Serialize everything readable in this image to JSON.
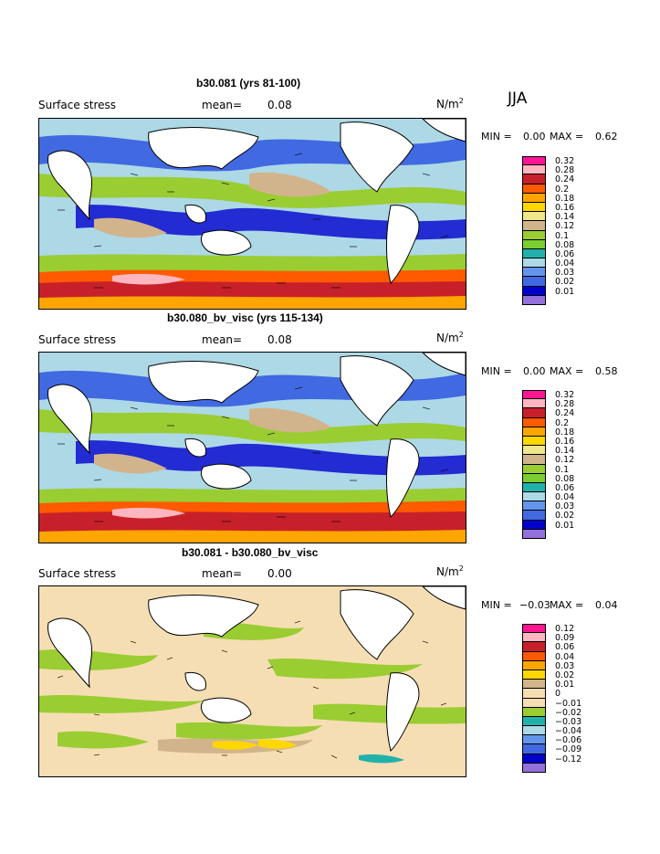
{
  "season": "JJA",
  "panels": [
    {
      "title": "b30.081 (yrs 81-100)",
      "left_label": "Surface stress",
      "mean_label": "mean=",
      "mean_value": "0.08",
      "units_base": "N/m",
      "units_exp": "2",
      "min_label": "MIN =",
      "min_value": "0.00",
      "max_label": "MAX =",
      "max_value": "0.62",
      "legend": [
        "0.32",
        "0.28",
        "0.24",
        "0.2",
        "0.18",
        "0.16",
        "0.14",
        "0.12",
        "0.1",
        "0.08",
        "0.06",
        "0.04",
        "0.03",
        "0.02",
        "0.01"
      ],
      "legend_colors": [
        "#ff1493",
        "#ffb6c1",
        "#c8202a",
        "#ff5a00",
        "#ffa500",
        "#ffd700",
        "#f0e68c",
        "#d2b48c",
        "#9acd32",
        "#7ccd32",
        "#20b2aa",
        "#add8e6",
        "#6495ed",
        "#4169e1",
        "#0000cd",
        "#9370db"
      ]
    },
    {
      "title": "b30.080_bv_visc (yrs 115-134)",
      "left_label": "Surface stress",
      "mean_label": "mean=",
      "mean_value": "0.08",
      "units_base": "N/m",
      "units_exp": "2",
      "min_label": "MIN =",
      "min_value": "0.00",
      "max_label": "MAX =",
      "max_value": "0.58",
      "legend": [
        "0.32",
        "0.28",
        "0.24",
        "0.2",
        "0.18",
        "0.16",
        "0.14",
        "0.12",
        "0.1",
        "0.08",
        "0.06",
        "0.04",
        "0.03",
        "0.02",
        "0.01"
      ],
      "legend_colors": [
        "#ff1493",
        "#ffb6c1",
        "#c8202a",
        "#ff5a00",
        "#ffa500",
        "#ffd700",
        "#f0e68c",
        "#d2b48c",
        "#9acd32",
        "#7ccd32",
        "#20b2aa",
        "#add8e6",
        "#6495ed",
        "#4169e1",
        "#0000cd",
        "#9370db"
      ]
    },
    {
      "title": "b30.081 - b30.080_bv_visc",
      "left_label": "Surface stress",
      "mean_label": "mean=",
      "mean_value": "0.00",
      "units_base": "N/m",
      "units_exp": "2",
      "min_label": "MIN =",
      "min_value": "−0.03",
      "max_label": "MAX =",
      "max_value": "0.04",
      "legend": [
        "0.12",
        "0.09",
        "0.06",
        "0.04",
        "0.03",
        "0.02",
        "0.01",
        "0",
        "−0.01",
        "−0.02",
        "−0.03",
        "−0.04",
        "−0.06",
        "−0.09",
        "−0.12"
      ],
      "legend_colors": [
        "#ff1493",
        "#ffb6c1",
        "#c8202a",
        "#ff5a00",
        "#ffa500",
        "#ffd700",
        "#d2b48c",
        "#f5deb3",
        "#f5deb3",
        "#9acd32",
        "#20b2aa",
        "#add8e6",
        "#6495ed",
        "#4169e1",
        "#0000cd",
        "#9370db"
      ]
    }
  ]
}
